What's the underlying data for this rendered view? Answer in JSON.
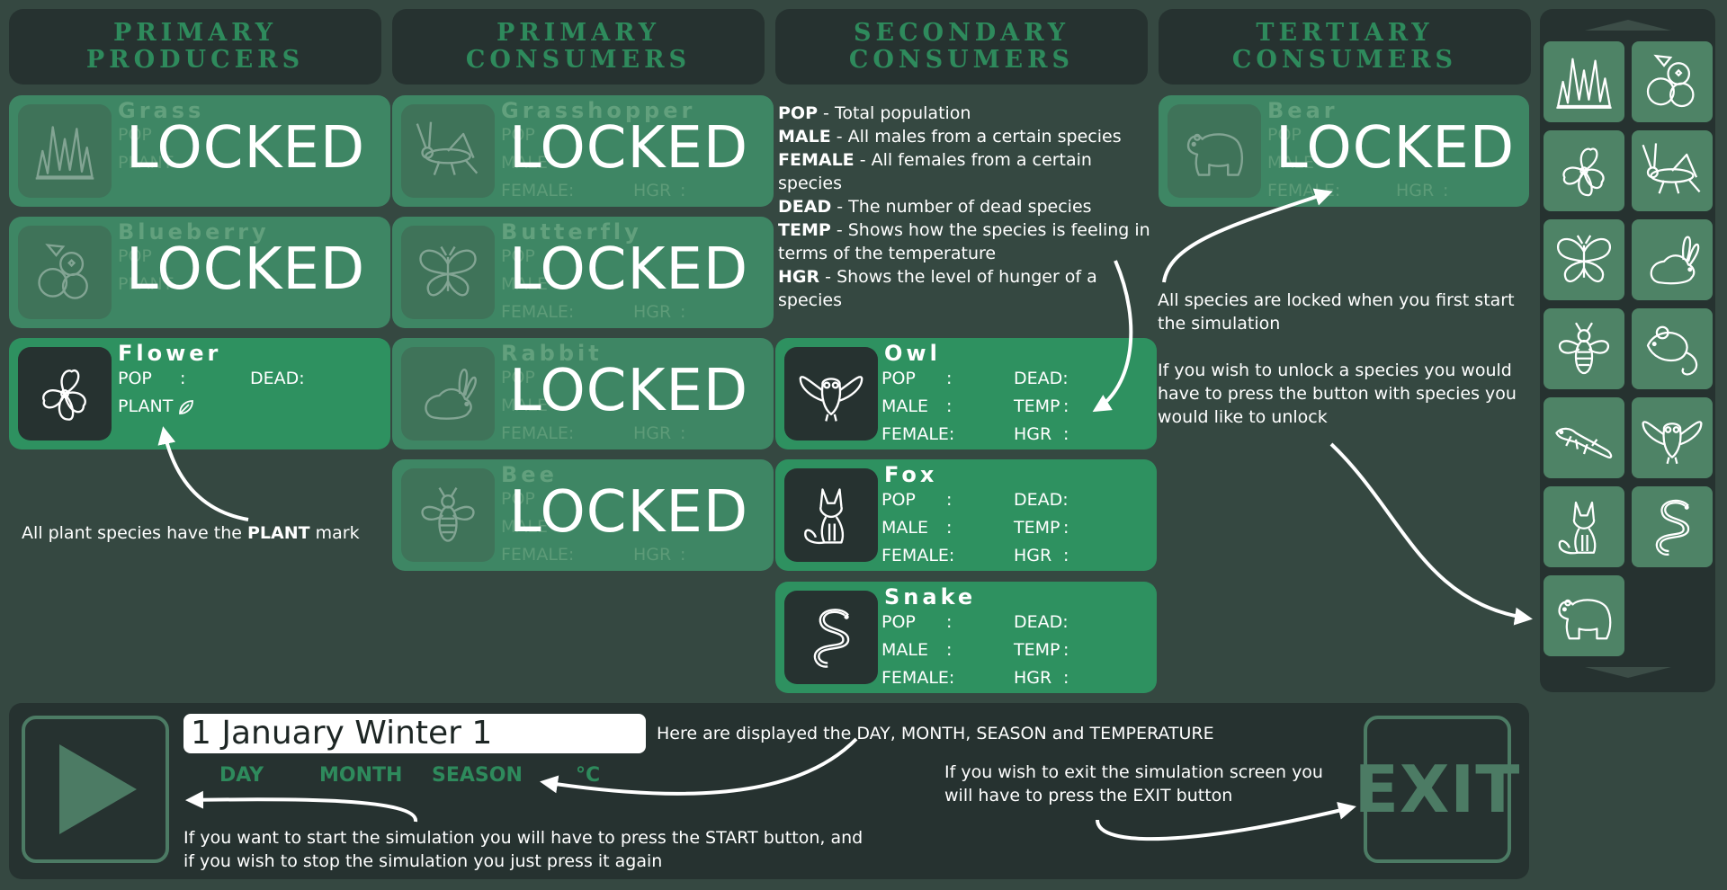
{
  "headers": {
    "producers": "PRIMARY\nPRODUCERS",
    "primary": "PRIMARY\nCONSUMERS",
    "secondary": "SECONDARY\nCONSUMERS",
    "tertiary": "TERTIARY\nCONSUMERS"
  },
  "labels": {
    "pop": "POP",
    "dead": "DEAD:",
    "male": "MALE",
    "temp": "TEMP",
    "female": "FEMALE:",
    "hgr": "HGR",
    "plant": "PLANT",
    "colon": ":",
    "locked": "LOCKED"
  },
  "species": {
    "grass": "Grass",
    "blueberry": "Blueberry",
    "flower": "Flower",
    "grasshopper": "Grasshopper",
    "butterfly": "Butterfly",
    "rabbit": "Rabbit",
    "bee": "Bee",
    "owl": "Owl",
    "fox": "Fox",
    "snake": "Snake",
    "bear": "Bear"
  },
  "legend": [
    {
      "term": "POP",
      "desc": " - Total population"
    },
    {
      "term": "MALE",
      "desc": " - All males from a certain species"
    },
    {
      "term": "FEMALE",
      "desc": " - All females from a certain species"
    },
    {
      "term": "DEAD",
      "desc": " - The number of dead species"
    },
    {
      "term": "TEMP",
      "desc": " - Shows how the species is feeling in terms of the temperature"
    },
    {
      "term": "HGR",
      "desc": " - Shows the level of hunger of a species"
    }
  ],
  "notes": {
    "plant_pre": "All plant species have the ",
    "plant_bold": "PLANT",
    "plant_post": " mark",
    "locked": "All species are locked when you first start the simulation",
    "unlock": "If you wish to unlock a species you would have to press the button with species you would like to unlock",
    "date": "Here are displayed the DAY, MONTH, SEASON and TEMPERATURE",
    "start": "If you want to start the simulation you will have to press the START button, and if you wish to stop the simulation you just press it again",
    "exit": "If you wish to exit the simulation screen you will have to press the EXIT button"
  },
  "bottom": {
    "date_value": "1 January Winter 1",
    "day": "DAY",
    "month": "MONTH",
    "season": "SEASON",
    "celsius": "°C",
    "exit": "EXIT"
  },
  "sidebar": {
    "buttons": [
      "grass-icon",
      "blueberry-icon",
      "flower-icon",
      "grasshopper-icon",
      "butterfly-icon",
      "rabbit-icon",
      "bee-icon",
      "mouse-icon",
      "lizard-icon",
      "owl-icon",
      "fox-icon",
      "snake-icon",
      "bear-icon"
    ]
  },
  "colors": {
    "background": "#354841",
    "panel": "#263230",
    "active_card": "#2e9160",
    "locked_card": "#3e8664",
    "accent": "#2e8a5c"
  }
}
